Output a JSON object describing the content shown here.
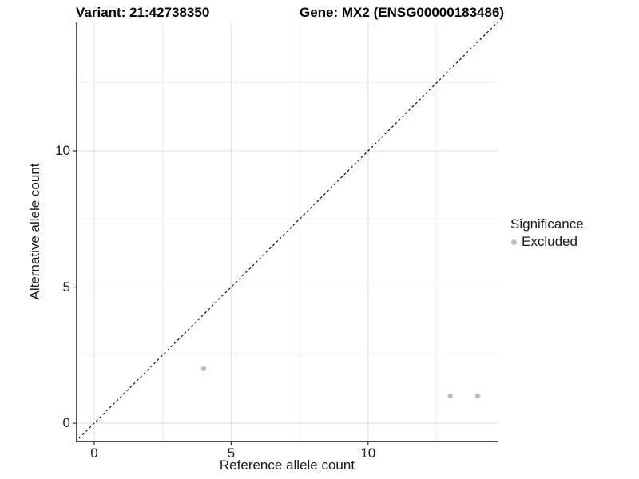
{
  "chart_data": {
    "type": "scatter",
    "titles": {
      "left": "Variant: 21:42738350",
      "right": "Gene: MX2 (ENSG00000183486)"
    },
    "xlabel": "Reference allele count",
    "ylabel": "Alternative allele count",
    "xlim": [
      -0.64,
      14.73
    ],
    "ylim": [
      -0.67,
      14.72
    ],
    "x_ticks": {
      "major": [
        0,
        5,
        10
      ],
      "minor": [
        2.5,
        7.5,
        12.5
      ]
    },
    "y_ticks": {
      "major": [
        0,
        5,
        10
      ],
      "minor": [
        2.5,
        7.5,
        12.5
      ]
    },
    "grid": "on",
    "reference_line": {
      "type": "identity",
      "style": "dashed",
      "color": "#000000"
    },
    "series": [
      {
        "name": "Excluded",
        "color": "#bdbdbd",
        "points": [
          [
            4,
            2
          ],
          [
            13,
            1
          ],
          [
            14,
            1
          ]
        ]
      }
    ],
    "legend": {
      "title": "Significance",
      "position": "right",
      "entries": [
        {
          "label": "Excluded",
          "color": "#bdbdbd"
        }
      ]
    },
    "colors": {
      "grid_major": "#e3e3e3",
      "grid_minor": "#efefef",
      "axis": "#333333",
      "tick_text": "#1a1a1a"
    }
  }
}
